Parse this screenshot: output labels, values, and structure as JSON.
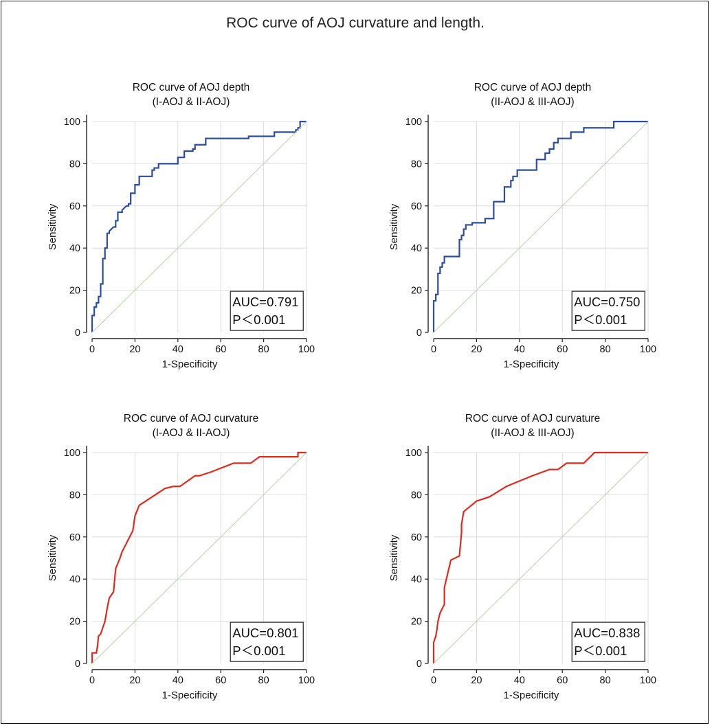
{
  "figure_title": "ROC curve of AOJ curvature and length.",
  "chart_data": [
    {
      "type": "line",
      "title": "ROC curve of AOJ depth",
      "subtitle": "(I-AOJ & II-AOJ)",
      "xlabel": "1-Specificity",
      "ylabel": "Sensitivity",
      "xlim": [
        0,
        100
      ],
      "ylim": [
        0,
        100
      ],
      "xticks": [
        "0",
        "20",
        "40",
        "60",
        "80",
        "100"
      ],
      "yticks": [
        "0",
        "20",
        "40",
        "60",
        "80",
        "100"
      ],
      "grid": true,
      "line_color": "#2b4da1",
      "annotation": {
        "auc": "AUC=0.791",
        "p": "P＜0.001"
      },
      "series": [
        {
          "style": "step",
          "x": [
            0,
            0,
            1,
            1,
            2,
            2,
            3,
            3,
            4,
            4,
            5,
            5,
            6,
            6,
            7,
            7,
            8,
            8,
            9,
            10,
            11,
            11,
            12,
            12,
            14,
            14,
            15,
            16,
            17,
            17,
            18,
            18,
            20,
            20,
            22,
            22,
            25,
            25,
            28,
            28,
            29,
            29,
            31,
            31,
            40,
            40,
            43,
            43,
            47,
            47,
            48,
            48,
            53,
            53,
            73,
            73,
            85,
            85,
            95,
            95,
            96,
            96,
            97,
            97,
            100
          ],
          "y": [
            0,
            8,
            8,
            12,
            12,
            14,
            14,
            17,
            17,
            23,
            23,
            35,
            35,
            40,
            40,
            47,
            47,
            48,
            49,
            50,
            50,
            53,
            53,
            57,
            57,
            58,
            59,
            60,
            60,
            61,
            61,
            66,
            66,
            70,
            70,
            74,
            74,
            74,
            74,
            77,
            77,
            78,
            78,
            80,
            80,
            83,
            83,
            86,
            86,
            87,
            87,
            89,
            89,
            92,
            92,
            93,
            93,
            95,
            95,
            96,
            96,
            97,
            97,
            100,
            100
          ]
        },
        {
          "style": "diagonal",
          "x": [
            0,
            100
          ],
          "y": [
            0,
            100
          ]
        }
      ]
    },
    {
      "type": "line",
      "title": "ROC curve of AOJ depth",
      "subtitle": "(II-AOJ & III-AOJ)",
      "xlabel": "1-Specificity",
      "ylabel": "Sensitivity",
      "xlim": [
        0,
        100
      ],
      "ylim": [
        0,
        100
      ],
      "xticks": [
        "0",
        "20",
        "40",
        "60",
        "80",
        "100"
      ],
      "yticks": [
        "0",
        "20",
        "40",
        "60",
        "80",
        "100"
      ],
      "grid": true,
      "line_color": "#2b4da1",
      "annotation": {
        "auc": "AUC=0.750",
        "p": "P＜0.001"
      },
      "series": [
        {
          "style": "step",
          "x": [
            0,
            0,
            1,
            1,
            2,
            2,
            3,
            3,
            4,
            4,
            5,
            5,
            7,
            7,
            12,
            12,
            13,
            13,
            14,
            14,
            15,
            15,
            18,
            18,
            24,
            24,
            28,
            28,
            33,
            33,
            36,
            36,
            37,
            37,
            39,
            39,
            48,
            48,
            52,
            52,
            54,
            54,
            56,
            56,
            58,
            58,
            61,
            61,
            64,
            64,
            70,
            70,
            84,
            84,
            100
          ],
          "y": [
            0,
            15,
            15,
            18,
            18,
            28,
            28,
            31,
            31,
            33,
            33,
            36,
            36,
            36,
            36,
            44,
            44,
            46,
            46,
            49,
            49,
            51,
            51,
            52,
            52,
            54,
            54,
            62,
            62,
            69,
            69,
            72,
            72,
            74,
            74,
            77,
            77,
            82,
            82,
            85,
            85,
            87,
            87,
            90,
            90,
            92,
            92,
            92,
            92,
            95,
            95,
            97,
            97,
            100,
            100
          ]
        },
        {
          "style": "diagonal",
          "x": [
            0,
            100
          ],
          "y": [
            0,
            100
          ]
        }
      ]
    },
    {
      "type": "line",
      "title": "ROC curve of AOJ curvature",
      "subtitle": "(I-AOJ & II-AOJ)",
      "xlabel": "1-Specificity",
      "ylabel": "Sensitivity",
      "xlim": [
        0,
        100
      ],
      "ylim": [
        0,
        100
      ],
      "xticks": [
        "0",
        "20",
        "40",
        "60",
        "80",
        "100"
      ],
      "yticks": [
        "0",
        "20",
        "40",
        "60",
        "80",
        "100"
      ],
      "grid": true,
      "line_color": "#e02a1e",
      "annotation": {
        "auc": "AUC=0.801",
        "p": "P＜0.001"
      },
      "series": [
        {
          "style": "polyline",
          "x": [
            0,
            0,
            2,
            2.5,
            3,
            4,
            5,
            6,
            7,
            8,
            10,
            11,
            13,
            14,
            16,
            18,
            19,
            20,
            22,
            28,
            34,
            38,
            41,
            48,
            50,
            56,
            66,
            74,
            78,
            96,
            96,
            100
          ],
          "y": [
            0,
            5,
            5,
            8,
            13,
            14,
            17,
            20,
            26,
            31,
            34,
            45,
            50,
            53,
            57,
            61,
            63,
            70,
            75,
            79,
            83,
            84,
            84,
            89,
            89,
            91,
            95,
            95,
            98,
            98,
            100,
            100
          ]
        },
        {
          "style": "diagonal",
          "x": [
            0,
            100
          ],
          "y": [
            0,
            100
          ]
        }
      ]
    },
    {
      "type": "line",
      "title": "ROC curve of AOJ curvature",
      "subtitle": "(II-AOJ & III-AOJ)",
      "xlabel": "1-Specificity",
      "ylabel": "Sensitivity",
      "xlim": [
        0,
        100
      ],
      "ylim": [
        0,
        100
      ],
      "xticks": [
        "0",
        "20",
        "40",
        "60",
        "80",
        "100"
      ],
      "yticks": [
        "0",
        "20",
        "40",
        "60",
        "80",
        "100"
      ],
      "grid": true,
      "line_color": "#e02a1e",
      "annotation": {
        "auc": "AUC=0.838",
        "p": "P＜0.001"
      },
      "series": [
        {
          "style": "polyline",
          "x": [
            0,
            0,
            1,
            1.5,
            2,
            3,
            4,
            5,
            5,
            8,
            12,
            13,
            13,
            14,
            20,
            26,
            34,
            46,
            54,
            58,
            62,
            70,
            75,
            100
          ],
          "y": [
            0,
            10,
            13,
            16,
            20,
            24,
            26,
            28,
            36,
            49,
            51,
            62,
            66,
            72,
            77,
            79,
            84,
            89,
            92,
            92,
            95,
            95,
            100,
            100
          ]
        },
        {
          "style": "diagonal",
          "x": [
            0,
            100
          ],
          "y": [
            0,
            100
          ]
        }
      ]
    }
  ]
}
